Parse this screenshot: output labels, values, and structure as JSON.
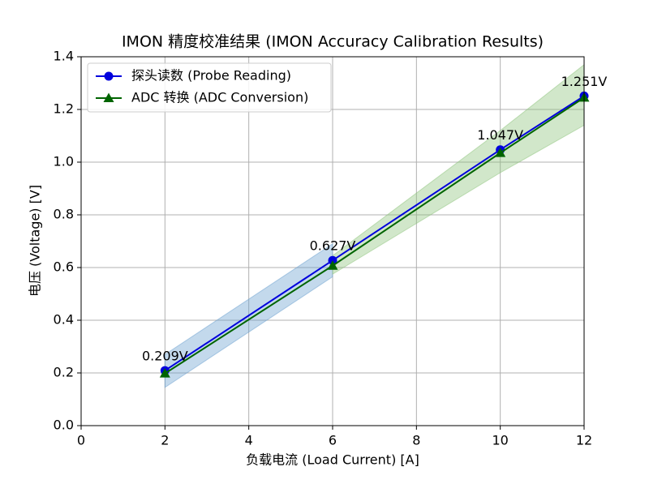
{
  "chart_data": {
    "type": "line",
    "title": "IMON 精度校准结果 (IMON Accuracy Calibration Results)",
    "x_label": "负载电流 (Load Current) [A]",
    "y_label": "电压 (Voltage) [V]",
    "x": [
      2,
      6,
      10,
      12
    ],
    "series": [
      {
        "name": "探头读数 (Probe Reading)",
        "color": "#0000dd",
        "marker": "circle",
        "values": [
          0.209,
          0.627,
          1.047,
          1.251
        ],
        "value_labels": [
          "0.209V",
          "0.627V",
          "1.047V",
          "1.251V"
        ]
      },
      {
        "name": "ADC 转换 (ADC Conversion)",
        "color": "#006400",
        "marker": "triangle",
        "values": [
          0.198,
          0.607,
          1.035,
          1.245
        ]
      }
    ],
    "bands": [
      {
        "color": "#6a9fd0",
        "x": [
          2,
          6
        ],
        "lower": [
          0.145,
          0.565
        ],
        "upper": [
          0.27,
          0.69
        ]
      },
      {
        "color": "#8cc47a",
        "x": [
          6,
          10,
          12
        ],
        "lower": [
          0.575,
          0.96,
          1.14
        ],
        "upper": [
          0.645,
          1.12,
          1.37
        ]
      }
    ],
    "xlim": [
      0,
      12
    ],
    "xticks": [
      0,
      2,
      4,
      6,
      8,
      10,
      12
    ],
    "ylim": [
      0,
      1.4
    ],
    "yticks": [
      {
        "value": 0,
        "label": "0.0"
      },
      0.2,
      0.4,
      0.6,
      0.8,
      {
        "value": 1,
        "label": "1.0"
      },
      1.2,
      1.4
    ],
    "grid": true,
    "legend": "upper-left"
  }
}
